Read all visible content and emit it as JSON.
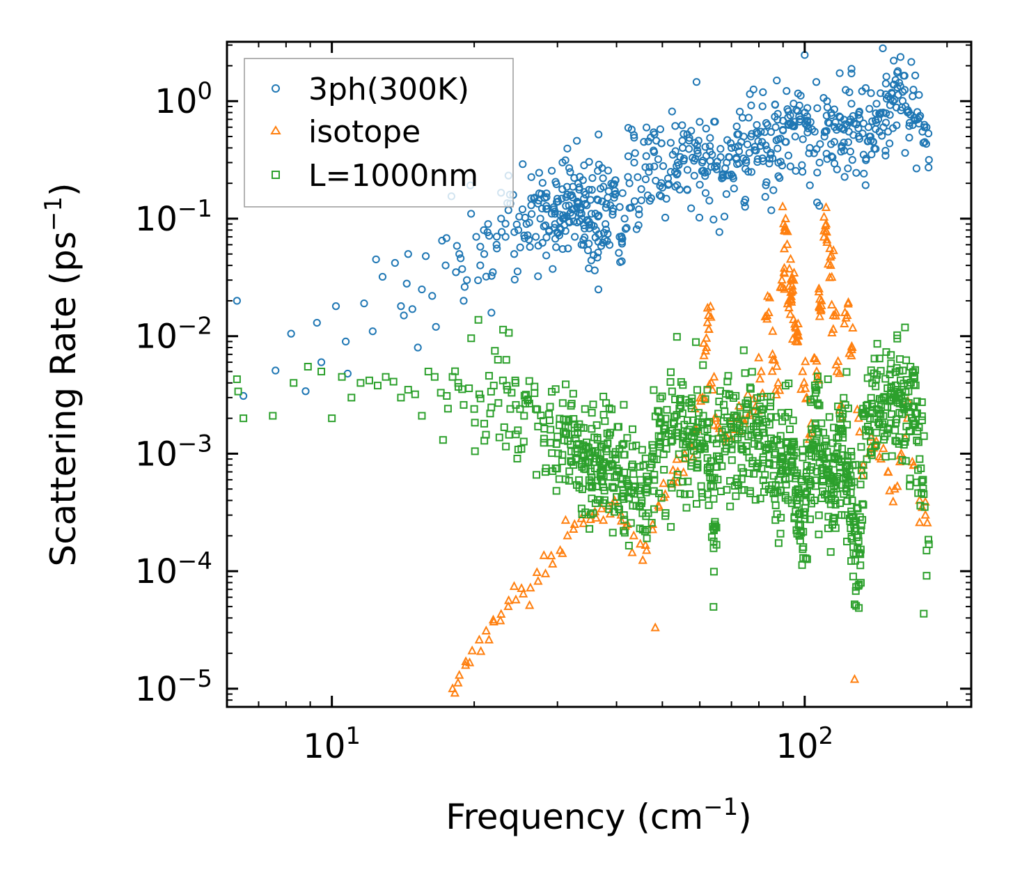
{
  "chart_data": {
    "type": "scatter",
    "title": "",
    "xlabel": "Frequency (cm",
    "xlabel_sup": "−1",
    "xlabel_end": ")",
    "ylabel": "Scattering Rate (ps",
    "ylabel_sup": "−1",
    "ylabel_end": ")",
    "x_scale": "log",
    "y_scale": "log",
    "xlim": [
      6.0,
      225.0
    ],
    "ylim": [
      7e-06,
      3.2
    ],
    "x_ticks": [
      {
        "base": "10",
        "exp": "1",
        "value": 10
      },
      {
        "base": "10",
        "exp": "2",
        "value": 100
      }
    ],
    "y_ticks": [
      {
        "base": "10",
        "exp": "0",
        "value": 1
      },
      {
        "base": "10",
        "exp": "−1",
        "value": 0.1
      },
      {
        "base": "10",
        "exp": "−2",
        "value": 0.01
      },
      {
        "base": "10",
        "exp": "−3",
        "value": 0.001
      },
      {
        "base": "10",
        "exp": "−4",
        "value": 0.0001
      },
      {
        "base": "10",
        "exp": "−5",
        "value": 1e-05
      }
    ],
    "legend_position": "top-left",
    "series": [
      {
        "name": "3ph(300K)",
        "marker": "circle",
        "color": "#1f77b4",
        "x": [
          6.3,
          6.5,
          7.6,
          8.2,
          8.8,
          9.3,
          9.5,
          10.2,
          10.8,
          10.7,
          11.7,
          12.2,
          12.4,
          12.8,
          13.6,
          14.0,
          14.2,
          14.4,
          14.5,
          14.8,
          15.2,
          15.5,
          15.8,
          16.3,
          16.6,
          17.1,
          17.4,
          17.9,
          18.3,
          18.6,
          19.0,
          19.3,
          19.7,
          20.2,
          20.6,
          21.0,
          21.4,
          21.9,
          22.3,
          22.8,
          23.3,
          23.8,
          24.3,
          24.8,
          25.3,
          25.8,
          26.4,
          27.0,
          27.6,
          28.2,
          28.8,
          29.5,
          30.1,
          30.8,
          31.5,
          32.2,
          33.0,
          33.8,
          34.6,
          35.4,
          36.2,
          37.0,
          37.9,
          38.8,
          39.7,
          40.6,
          41.6,
          42.6,
          43.6,
          44.6,
          45.7,
          46.8,
          47.9,
          49.0,
          50.2,
          51.4,
          52.6,
          53.9,
          55.2,
          56.5,
          57.9,
          59.3,
          60.7,
          62.2,
          63.7,
          65.2,
          66.8,
          68.4,
          70.0,
          71.7,
          73.4,
          75.2,
          77.0,
          78.9,
          80.8,
          82.7,
          84.7,
          86.8,
          88.9,
          91.0,
          93.2,
          95.5,
          97.8,
          100.1,
          102.5,
          105.0,
          107.5,
          110.1,
          112.8,
          115.5,
          118.3,
          121.1,
          124.0,
          127.0,
          130.1,
          133.2,
          136.4,
          139.7,
          143.1,
          146.6,
          150.1,
          153.7,
          157.4,
          161.2,
          165.1,
          169.1,
          173.2,
          177.4,
          181.0
        ],
        "y": [
          0.02,
          0.0031,
          0.0051,
          0.0105,
          0.0034,
          0.013,
          0.006,
          0.018,
          0.0048,
          0.009,
          0.019,
          0.011,
          0.045,
          0.032,
          0.042,
          0.018,
          0.015,
          0.028,
          0.05,
          0.017,
          0.008,
          0.025,
          0.048,
          0.022,
          0.012,
          0.065,
          0.04,
          0.155,
          0.035,
          0.05,
          0.02,
          0.03,
          0.11,
          0.07,
          0.04,
          0.05,
          0.09,
          0.035,
          0.06,
          0.1,
          0.07,
          0.16,
          0.05,
          0.08,
          0.12,
          0.09,
          0.13,
          0.07,
          0.1,
          0.15,
          0.08,
          0.12,
          0.14,
          0.1,
          0.16,
          0.12,
          0.14,
          0.1,
          0.13,
          0.11,
          0.08,
          0.18,
          0.09,
          0.13,
          0.16,
          0.07,
          0.1,
          0.2,
          0.3,
          0.12,
          0.45,
          0.25,
          0.38,
          0.32,
          0.28,
          0.22,
          0.35,
          0.3,
          0.4,
          0.26,
          0.33,
          0.38,
          0.3,
          0.25,
          0.35,
          0.28,
          0.22,
          0.3,
          0.4,
          0.33,
          0.45,
          0.3,
          0.5,
          0.38,
          0.55,
          0.42,
          0.35,
          0.6,
          0.48,
          0.45,
          0.65,
          0.5,
          0.7,
          0.8,
          0.4,
          0.55,
          0.3,
          0.5,
          0.65,
          0.45,
          0.6,
          0.38,
          0.55,
          0.65,
          0.5,
          0.35,
          0.6,
          0.45,
          0.7,
          0.8,
          0.55,
          1.0,
          1.8,
          1.2,
          0.8,
          1.1,
          0.7,
          0.55,
          0.6
        ],
        "scatter": 0.22,
        "density": [
          1,
          1,
          1,
          1,
          1,
          1,
          1,
          1,
          1,
          1,
          1,
          1,
          1,
          1,
          1,
          1,
          1,
          1,
          1,
          1,
          1,
          1,
          1,
          1,
          1,
          1,
          2,
          1,
          2,
          2,
          2,
          2,
          2,
          2,
          2,
          3,
          3,
          3,
          3,
          3,
          3,
          4,
          4,
          4,
          5,
          5,
          5,
          6,
          7,
          7,
          8,
          10,
          10,
          10,
          12,
          12,
          12,
          12,
          12,
          12,
          10,
          12,
          10,
          8,
          8,
          8,
          6,
          6,
          6,
          6,
          6,
          6,
          6,
          6,
          6,
          6,
          7,
          7,
          7,
          7,
          7,
          7,
          7,
          7,
          7,
          7,
          7,
          7,
          7,
          7,
          8,
          8,
          8,
          8,
          8,
          8,
          8,
          8,
          8,
          8,
          9,
          9,
          9,
          9,
          5,
          5,
          6,
          8,
          8,
          8,
          8,
          8,
          8,
          8,
          8,
          8,
          8,
          8,
          9,
          9,
          9,
          9,
          9,
          9,
          9,
          7,
          6,
          6,
          5
        ]
      },
      {
        "name": "isotope",
        "marker": "triangle",
        "color": "#ff7f0e",
        "x": [
          18.0,
          18.6,
          19.2,
          19.8,
          20.5,
          21.2,
          22.0,
          22.8,
          23.6,
          24.5,
          25.4,
          26.3,
          27.3,
          28.3,
          29.3,
          30.4,
          31.5,
          32.6,
          33.7,
          34.8,
          36.0,
          37.2,
          38.4,
          39.6,
          40.9,
          42.2,
          43.5,
          44.9,
          46.3,
          47.7,
          48.3,
          49.2,
          50.7,
          52.3,
          53.9,
          55.6,
          57.3,
          59.0,
          60.8,
          62.0,
          62.6,
          63.5,
          64.5,
          66.4,
          68.3,
          70.3,
          72.3,
          74.4,
          76.5,
          78.7,
          80.9,
          83.2,
          85.5,
          87.9,
          89.5,
          91.0,
          92.5,
          94.0,
          95.5,
          97.0,
          99.0,
          101.0,
          103.5,
          106.0,
          108.5,
          111.0,
          113.5,
          115.0,
          117.0,
          120.0,
          123.0,
          126.0,
          127.5,
          130.0,
          133.0,
          137.0,
          141.0,
          145.0,
          150.0,
          155.0,
          160.0,
          165.0,
          170.0,
          175.0,
          180.0
        ],
        "y": [
          1e-05,
          1.3e-05,
          1.7e-05,
          2.1e-05,
          2.6e-05,
          3.1e-05,
          3.7e-05,
          4.3e-05,
          5e-05,
          5.7e-05,
          6.4e-05,
          7.2e-05,
          8.2e-05,
          9.5e-05,
          0.000115,
          0.00015,
          0.0002,
          0.00025,
          0.00028,
          0.0003,
          0.00032,
          0.00034,
          0.00036,
          0.0004,
          0.0003,
          0.00025,
          0.0002,
          0.00017,
          0.00015,
          0.00025,
          3.3e-05,
          0.00035,
          0.00045,
          0.00055,
          0.0007,
          0.0009,
          0.0012,
          0.0016,
          0.003,
          0.008,
          0.015,
          0.004,
          0.002,
          0.0015,
          0.0014,
          0.0016,
          0.002,
          0.0018,
          0.0022,
          0.0025,
          0.005,
          0.015,
          0.007,
          0.004,
          0.03,
          0.08,
          0.02,
          0.03,
          0.012,
          0.01,
          0.005,
          0.003,
          0.0015,
          0.005,
          0.02,
          0.09,
          0.04,
          0.015,
          0.005,
          0.002,
          0.015,
          0.008,
          1.2e-05,
          0.002,
          0.0008,
          0.001,
          0.0012,
          0.0009,
          0.0007,
          0.0005,
          0.001,
          0.002,
          0.0008,
          0.0004,
          0.0003
        ],
        "scatter": 0.08,
        "density": [
          2,
          2,
          2,
          2,
          2,
          2,
          2,
          2,
          2,
          2,
          2,
          2,
          2,
          2,
          2,
          2,
          2,
          2,
          2,
          2,
          2,
          2,
          2,
          2,
          2,
          2,
          2,
          2,
          2,
          2,
          1,
          2,
          3,
          3,
          3,
          3,
          3,
          3,
          4,
          6,
          6,
          4,
          3,
          3,
          3,
          3,
          3,
          3,
          3,
          3,
          4,
          6,
          5,
          5,
          8,
          10,
          10,
          10,
          8,
          6,
          4,
          3,
          4,
          6,
          10,
          10,
          8,
          6,
          4,
          3,
          6,
          6,
          1,
          3,
          3,
          3,
          3,
          3,
          3,
          3,
          3,
          3,
          3,
          3,
          3
        ]
      },
      {
        "name": "L=1000nm",
        "marker": "square",
        "color": "#2ca02c",
        "x": [
          6.3,
          6.5,
          7.5,
          8.3,
          8.9,
          9.5,
          10.0,
          10.5,
          11.0,
          11.5,
          12.0,
          12.5,
          13.0,
          13.5,
          14.0,
          14.5,
          15.0,
          15.5,
          16.0,
          16.5,
          17.0,
          17.5,
          18.0,
          18.5,
          19.0,
          19.5,
          20.0,
          20.5,
          21.0,
          21.5,
          22.0,
          22.5,
          23.0,
          23.5,
          24.0,
          24.5,
          25.0,
          25.5,
          26.0,
          27.0,
          28.0,
          29.0,
          30.0,
          31.0,
          32.0,
          33.0,
          34.0,
          35.0,
          36.0,
          37.0,
          38.0,
          39.0,
          40.0,
          41.0,
          42.0,
          43.5,
          45.0,
          46.5,
          48.0,
          49.5,
          51.0,
          52.5,
          54.0,
          55.5,
          57.0,
          58.5,
          60.0,
          61.5,
          63.0,
          64.5,
          66.0,
          68.0,
          70.0,
          72.0,
          74.0,
          76.0,
          78.0,
          80.0,
          82.0,
          84.0,
          86.0,
          88.0,
          90.0,
          92.0,
          94.0,
          96.0,
          98.0,
          100.0,
          102.0,
          104.0,
          106.0,
          108.0,
          110.0,
          112.0,
          114.0,
          116.0,
          118.0,
          120.0,
          122.0,
          124.0,
          126.0,
          128.0,
          130.0,
          133.0,
          136.0,
          139.0,
          142.0,
          145.0,
          148.0,
          151.0,
          154.0,
          157.0,
          160.0,
          163.0,
          166.0,
          169.0,
          172.0,
          175.0,
          178.0,
          181.0
        ],
        "y": [
          0.0043,
          0.002,
          0.0021,
          0.004,
          0.0055,
          0.005,
          0.002,
          0.0045,
          0.003,
          0.004,
          0.0042,
          0.0038,
          0.0045,
          0.0041,
          0.003,
          0.0035,
          0.0032,
          0.0021,
          0.005,
          0.0045,
          0.0033,
          0.0031,
          0.0045,
          0.004,
          0.0026,
          0.0036,
          0.0024,
          0.0032,
          0.0018,
          0.0046,
          0.0038,
          0.0027,
          0.0042,
          0.0035,
          0.0033,
          0.0026,
          0.0024,
          0.0021,
          0.0029,
          0.0024,
          0.0019,
          0.0016,
          0.0014,
          0.0013,
          0.0012,
          0.0011,
          0.00095,
          0.00085,
          0.00075,
          0.0009,
          0.0011,
          0.00082,
          0.00065,
          0.00055,
          0.0006,
          0.00052,
          0.00045,
          0.0006,
          0.0009,
          0.0012,
          0.0011,
          0.0013,
          0.0015,
          0.0014,
          0.0016,
          0.0015,
          0.0013,
          0.0011,
          0.00075,
          0.00025,
          0.0009,
          0.0016,
          0.0017,
          0.0018,
          0.0016,
          0.0014,
          0.0017,
          0.0019,
          0.0015,
          0.0011,
          0.0008,
          0.0006,
          0.0009,
          0.0011,
          0.0008,
          0.0004,
          0.00022,
          0.0003,
          0.0006,
          0.0012,
          0.0013,
          0.0011,
          0.0009,
          0.0007,
          0.0005,
          0.0004,
          0.0009,
          0.0011,
          0.0008,
          0.0006,
          0.0004,
          0.00022,
          0.00018,
          0.0008,
          0.0017,
          0.0022,
          0.0024,
          0.0026,
          0.0025,
          0.0028,
          0.003,
          0.0035,
          0.0031,
          0.0028,
          0.0027,
          0.0025,
          0.0022,
          0.0009,
          0.0006,
          0.00015
        ],
        "scatter": 0.28,
        "density": [
          2,
          1,
          1,
          1,
          1,
          1,
          1,
          1,
          1,
          1,
          1,
          1,
          1,
          1,
          1,
          1,
          1,
          1,
          1,
          1,
          2,
          2,
          2,
          2,
          2,
          2,
          3,
          3,
          3,
          3,
          3,
          3,
          3,
          4,
          4,
          4,
          4,
          5,
          5,
          6,
          7,
          8,
          10,
          12,
          14,
          16,
          18,
          18,
          18,
          16,
          14,
          14,
          14,
          14,
          14,
          14,
          14,
          14,
          14,
          14,
          14,
          14,
          14,
          14,
          14,
          14,
          14,
          14,
          16,
          16,
          14,
          14,
          14,
          14,
          14,
          14,
          14,
          14,
          14,
          14,
          14,
          14,
          14,
          16,
          16,
          16,
          16,
          16,
          14,
          14,
          14,
          14,
          14,
          14,
          14,
          14,
          14,
          14,
          14,
          14,
          16,
          16,
          16,
          14,
          12,
          12,
          12,
          12,
          12,
          12,
          12,
          12,
          12,
          12,
          12,
          12,
          10,
          10,
          8,
          6
        ]
      }
    ]
  }
}
